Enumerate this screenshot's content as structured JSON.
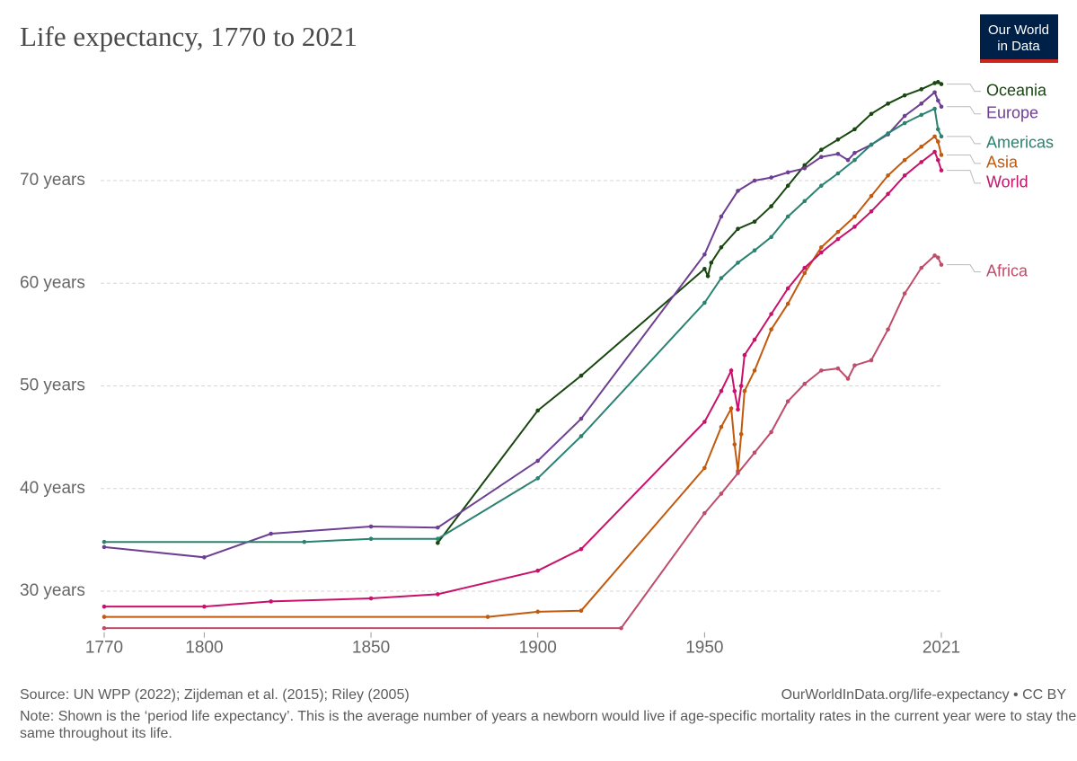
{
  "chart_data": {
    "type": "line",
    "title": "Life expectancy, 1770 to 2021",
    "logo": [
      "Our World",
      "in Data"
    ],
    "source": "Source: UN WPP (2022); Zijdeman et al. (2015); Riley (2005)",
    "attribution": "OurWorldInData.org/life-expectancy • CC BY",
    "note": "Note: Shown is the ‘period life expectancy’. This is the average number of years a newborn would live if age-specific mortality rates in the current year were to stay the same throughout its life.",
    "xlim": [
      1770,
      2021
    ],
    "xticks": [
      1770,
      1800,
      1850,
      1900,
      1950,
      2021
    ],
    "ylim": [
      26,
      80
    ],
    "yticks": [
      {
        "value": 30,
        "label": "30 years"
      },
      {
        "value": 40,
        "label": "40 years"
      },
      {
        "value": 50,
        "label": "50 years"
      },
      {
        "value": 60,
        "label": "60 years"
      },
      {
        "value": 70,
        "label": "70 years"
      }
    ],
    "grid": true,
    "series": [
      {
        "name": "Oceania",
        "color": "#18470f",
        "x": [
          1870,
          1900,
          1913,
          1950,
          1951,
          1952,
          1955,
          1960,
          1965,
          1970,
          1975,
          1980,
          1985,
          1990,
          1995,
          2000,
          2005,
          2010,
          2015,
          2019,
          2020,
          2021
        ],
        "values": [
          34.7,
          47.6,
          51,
          61.4,
          60.7,
          62,
          63.5,
          65.3,
          66,
          67.5,
          69.5,
          71.5,
          73,
          74,
          75,
          76.5,
          77.5,
          78.3,
          78.9,
          79.5,
          79.6,
          79.4
        ]
      },
      {
        "name": "Europe",
        "color": "#6d3e91",
        "x": [
          1770,
          1800,
          1820,
          1850,
          1870,
          1900,
          1913,
          1950,
          1955,
          1960,
          1965,
          1970,
          1975,
          1980,
          1985,
          1990,
          1993,
          1995,
          2000,
          2005,
          2010,
          2015,
          2019,
          2020,
          2021
        ],
        "values": [
          34.3,
          33.3,
          35.6,
          36.3,
          36.2,
          42.7,
          46.8,
          62.8,
          66.5,
          69,
          70,
          70.3,
          70.8,
          71.2,
          72.3,
          72.6,
          72,
          72.7,
          73.5,
          74.5,
          76.3,
          77.5,
          78.6,
          77.8,
          77.2
        ]
      },
      {
        "name": "Americas",
        "color": "#2a8271",
        "x": [
          1770,
          1830,
          1850,
          1870,
          1900,
          1913,
          1950,
          1955,
          1960,
          1965,
          1970,
          1975,
          1980,
          1985,
          1990,
          1995,
          2000,
          2005,
          2010,
          2015,
          2019,
          2020,
          2021
        ],
        "values": [
          34.8,
          34.8,
          35.1,
          35.1,
          41,
          45.1,
          58.1,
          60.5,
          62,
          63.2,
          64.5,
          66.5,
          68,
          69.5,
          70.7,
          72,
          73.5,
          74.6,
          75.6,
          76.4,
          77,
          75,
          74.3
        ]
      },
      {
        "name": "Asia",
        "color": "#c15a0e",
        "x": [
          1770,
          1885,
          1900,
          1913,
          1950,
          1955,
          1958,
          1959,
          1960,
          1961,
          1962,
          1965,
          1970,
          1975,
          1980,
          1985,
          1990,
          1995,
          2000,
          2005,
          2010,
          2015,
          2019,
          2020,
          2021
        ],
        "values": [
          27.5,
          27.5,
          28,
          28.1,
          42,
          46,
          47.8,
          44.3,
          41.7,
          45.3,
          49.5,
          51.5,
          55.5,
          58,
          61,
          63.5,
          65,
          66.5,
          68.5,
          70.5,
          72,
          73.3,
          74.3,
          73.8,
          72.5
        ]
      },
      {
        "name": "World",
        "color": "#c8116b",
        "x": [
          1770,
          1800,
          1820,
          1850,
          1870,
          1900,
          1913,
          1950,
          1955,
          1958,
          1959,
          1960,
          1961,
          1962,
          1965,
          1970,
          1975,
          1980,
          1985,
          1990,
          1995,
          2000,
          2005,
          2010,
          2015,
          2019,
          2020,
          2021
        ],
        "values": [
          28.5,
          28.5,
          29,
          29.3,
          29.7,
          32,
          34.1,
          46.5,
          49.5,
          51.5,
          49.5,
          47.7,
          50,
          53,
          54.5,
          57,
          59.5,
          61.5,
          63,
          64.3,
          65.5,
          67,
          68.7,
          70.5,
          71.8,
          72.8,
          72,
          71
        ]
      },
      {
        "name": "Africa",
        "color": "#bd4d6a",
        "x": [
          1770,
          1925,
          1950,
          1955,
          1960,
          1965,
          1970,
          1975,
          1980,
          1985,
          1990,
          1993,
          1995,
          2000,
          2005,
          2010,
          2015,
          2019,
          2020,
          2021
        ],
        "values": [
          26.4,
          26.4,
          37.6,
          39.5,
          41.5,
          43.5,
          45.5,
          48.5,
          50.2,
          51.5,
          51.7,
          50.7,
          52,
          52.5,
          55.5,
          59,
          61.5,
          62.7,
          62.5,
          61.8
        ]
      }
    ]
  }
}
